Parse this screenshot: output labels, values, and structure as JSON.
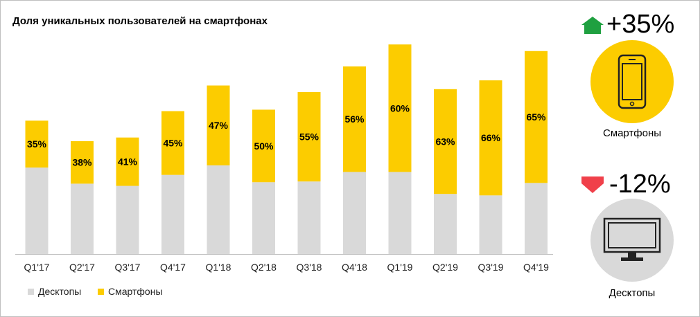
{
  "title": "Доля уникальных пользователей на смартфонах",
  "legend": {
    "desktop": "Десктопы",
    "smartphone": "Смартфоны"
  },
  "colors": {
    "desktop": "#d9d9d9",
    "smartphone": "#fccc00",
    "up": "#1fa040",
    "down": "#f0404a",
    "circle_desktop": "#d9d9d9"
  },
  "side": {
    "smartphone": {
      "change": "+35%",
      "label": "Смартфоны",
      "icon": "smartphone-icon",
      "direction": "up"
    },
    "desktop": {
      "change": "-12%",
      "label": "Десктопы",
      "icon": "monitor-icon",
      "direction": "down"
    }
  },
  "chart_data": {
    "type": "bar",
    "stacked": true,
    "categories": [
      "Q1'17",
      "Q2'17",
      "Q3'17",
      "Q4'17",
      "Q1'18",
      "Q2'18",
      "Q3'18",
      "Q4'18",
      "Q1'19",
      "Q2'19",
      "Q3'19",
      "Q4'19"
    ],
    "series": [
      {
        "name": "Десктопы",
        "values": [
          118,
          96,
          93,
          108,
          121,
          98,
          99,
          112,
          112,
          82,
          80,
          97
        ]
      },
      {
        "name": "Смартфоны",
        "values": [
          64,
          58,
          66,
          87,
          109,
          99,
          122,
          144,
          174,
          143,
          157,
          180
        ]
      }
    ],
    "data_labels": [
      "35%",
      "38%",
      "41%",
      "45%",
      "47%",
      "50%",
      "55%",
      "56%",
      "60%",
      "63%",
      "66%",
      "65%"
    ],
    "ylim": [
      0,
      290
    ],
    "grid": false,
    "legend_position": "bottom-left"
  }
}
